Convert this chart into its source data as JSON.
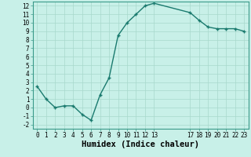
{
  "x": [
    0,
    1,
    2,
    3,
    4,
    5,
    6,
    7,
    8,
    9,
    10,
    11,
    12,
    13,
    17,
    18,
    19,
    20,
    21,
    22,
    23
  ],
  "y": [
    2.5,
    1.0,
    0.0,
    0.2,
    0.2,
    -0.8,
    -1.5,
    1.5,
    3.5,
    8.5,
    10.0,
    11.0,
    12.0,
    12.3,
    11.2,
    10.3,
    9.5,
    9.3,
    9.3,
    9.3,
    9.0
  ],
  "line_color": "#1a7a6e",
  "marker": "+",
  "marker_color": "#1a7a6e",
  "bg_color": "#c8f0e8",
  "grid_color": "#a8d8cc",
  "xlabel": "Humidex (Indice chaleur)",
  "xlim": [
    -0.5,
    23.5
  ],
  "ylim": [
    -2.5,
    12.5
  ],
  "yticks": [
    -2,
    -1,
    0,
    1,
    2,
    3,
    4,
    5,
    6,
    7,
    8,
    9,
    10,
    11,
    12
  ],
  "xticks": [
    0,
    1,
    2,
    3,
    4,
    5,
    6,
    7,
    8,
    9,
    10,
    11,
    12,
    13,
    17,
    18,
    19,
    20,
    21,
    22,
    23
  ],
  "tick_labelsize": 5.5,
  "xlabel_fontsize": 7.5,
  "linewidth": 1.0,
  "markersize": 3.5,
  "spine_color": "#3a9a8a"
}
